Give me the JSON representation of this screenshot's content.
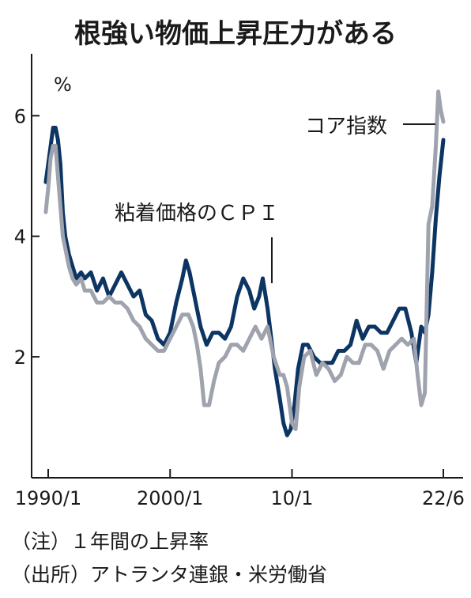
{
  "chart_data": {
    "type": "line",
    "title": "根強い物価上昇圧力がある",
    "ylabel": "%",
    "ylim": [
      0,
      7
    ],
    "yticks": [
      2,
      4,
      6
    ],
    "xlim": [
      1990.0,
      2022.5
    ],
    "xticks": [
      {
        "value": 1990.0,
        "label": "1990/1"
      },
      {
        "value": 2000.0,
        "label": "2000/1"
      },
      {
        "value": 2010.0,
        "label": "10/1"
      },
      {
        "value": 2022.4167,
        "label": "22/6"
      }
    ],
    "grid": false,
    "annotations": [
      {
        "text": "粘着価格のＣＰＩ",
        "target_series": 0
      },
      {
        "text": "コア指数",
        "target_series": 1
      }
    ],
    "series": [
      {
        "name": "粘着価格のＣＰＩ",
        "color": "#0d3563",
        "x": [
          1989.8,
          1990.0,
          1990.2,
          1990.4,
          1990.6,
          1990.8,
          1991.0,
          1991.2,
          1991.4,
          1991.7,
          1992.0,
          1992.3,
          1992.7,
          1993.0,
          1993.5,
          1994.0,
          1994.5,
          1995.0,
          1995.5,
          1996.0,
          1996.5,
          1997.0,
          1997.5,
          1998.0,
          1998.5,
          1999.0,
          1999.5,
          2000.0,
          2000.5,
          2001.0,
          2001.3,
          2001.6,
          2001.8,
          2002.0,
          2002.5,
          2003.0,
          2003.5,
          2004.0,
          2004.5,
          2005.0,
          2005.5,
          2006.0,
          2006.5,
          2006.9,
          2007.3,
          2007.6,
          2008.0,
          2008.3,
          2008.6,
          2009.0,
          2009.3,
          2009.6,
          2009.9,
          2010.2,
          2010.5,
          2010.9,
          2011.3,
          2011.8,
          2012.3,
          2012.8,
          2013.3,
          2013.8,
          2014.3,
          2014.8,
          2015.3,
          2015.8,
          2016.3,
          2016.8,
          2017.3,
          2017.8,
          2018.3,
          2018.8,
          2019.3,
          2019.8,
          2020.2,
          2020.6,
          2020.9,
          2021.2,
          2021.5,
          2021.8,
          2022.1,
          2022.4167
        ],
        "values": [
          4.9,
          5.2,
          5.5,
          5.8,
          5.8,
          5.6,
          5.2,
          4.4,
          4.0,
          3.7,
          3.5,
          3.3,
          3.4,
          3.3,
          3.4,
          3.1,
          3.3,
          3.0,
          3.2,
          3.4,
          3.2,
          3.0,
          3.1,
          2.7,
          2.6,
          2.3,
          2.2,
          2.4,
          2.9,
          3.3,
          3.6,
          3.4,
          3.2,
          3.0,
          2.5,
          2.2,
          2.4,
          2.4,
          2.3,
          2.5,
          3.0,
          3.3,
          3.1,
          2.8,
          3.0,
          3.3,
          2.8,
          2.3,
          1.8,
          1.3,
          0.9,
          0.7,
          0.8,
          1.2,
          1.8,
          2.2,
          2.2,
          2.0,
          1.9,
          1.9,
          1.9,
          2.1,
          2.1,
          2.2,
          2.6,
          2.3,
          2.5,
          2.5,
          2.4,
          2.4,
          2.6,
          2.8,
          2.8,
          2.4,
          1.9,
          2.5,
          2.4,
          2.7,
          3.4,
          4.3,
          5.0,
          5.6
        ]
      },
      {
        "name": "コア指数",
        "color": "#9fa3ad",
        "x": [
          1989.8,
          1990.0,
          1990.2,
          1990.4,
          1990.6,
          1990.8,
          1991.0,
          1991.2,
          1991.4,
          1991.7,
          1992.0,
          1992.3,
          1992.7,
          1993.0,
          1993.5,
          1994.0,
          1994.5,
          1995.0,
          1995.5,
          1996.0,
          1996.5,
          1997.0,
          1997.5,
          1998.0,
          1998.5,
          1999.0,
          1999.5,
          2000.0,
          2000.5,
          2001.0,
          2001.5,
          2001.9,
          2002.2,
          2002.5,
          2002.8,
          2003.2,
          2003.6,
          2004.0,
          2004.5,
          2005.0,
          2005.5,
          2006.0,
          2006.5,
          2007.0,
          2007.5,
          2008.0,
          2008.5,
          2009.0,
          2009.3,
          2009.6,
          2010.0,
          2010.3,
          2010.6,
          2011.0,
          2011.5,
          2012.0,
          2012.5,
          2013.0,
          2013.5,
          2014.0,
          2014.5,
          2015.0,
          2015.5,
          2016.0,
          2016.5,
          2017.0,
          2017.5,
          2018.0,
          2018.5,
          2019.0,
          2019.5,
          2020.0,
          2020.3,
          2020.6,
          2020.9,
          2021.2,
          2021.5,
          2021.8,
          2022.0,
          2022.2,
          2022.4167
        ],
        "values": [
          4.4,
          4.8,
          5.3,
          5.5,
          5.5,
          5.0,
          4.5,
          4.0,
          3.8,
          3.5,
          3.3,
          3.2,
          3.3,
          3.1,
          3.1,
          2.9,
          2.9,
          3.0,
          2.9,
          2.9,
          2.8,
          2.6,
          2.5,
          2.3,
          2.2,
          2.1,
          2.1,
          2.3,
          2.5,
          2.7,
          2.7,
          2.5,
          2.2,
          1.8,
          1.2,
          1.2,
          1.6,
          1.9,
          2.0,
          2.2,
          2.2,
          2.1,
          2.3,
          2.5,
          2.3,
          2.5,
          2.0,
          1.7,
          1.7,
          1.5,
          0.9,
          0.8,
          1.5,
          2.0,
          2.1,
          1.7,
          1.9,
          1.8,
          1.6,
          1.7,
          2.0,
          1.9,
          1.9,
          2.2,
          2.2,
          2.1,
          1.8,
          2.1,
          2.2,
          2.3,
          2.2,
          2.3,
          1.7,
          1.2,
          1.4,
          4.2,
          4.5,
          5.5,
          6.4,
          6.1,
          5.9
        ]
      }
    ]
  },
  "notes": {
    "note1": "（注）１年間の上昇率",
    "note2": "（出所）アトランタ連銀・米労働省"
  }
}
